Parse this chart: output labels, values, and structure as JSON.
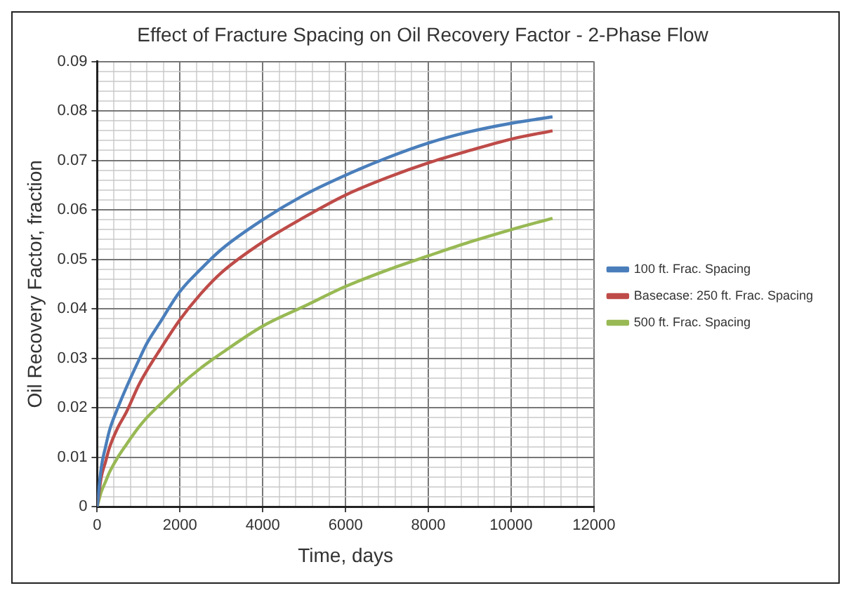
{
  "chart_data": {
    "type": "line",
    "title": "Effect of Fracture Spacing on Oil Recovery Factor - 2-Phase Flow",
    "xlabel": "Time, days",
    "ylabel": "Oil Recovery Factor, fraction",
    "x": [
      0,
      100,
      200,
      300,
      500,
      700,
      1000,
      1200,
      1500,
      2000,
      2500,
      3000,
      4000,
      5000,
      6000,
      7000,
      8000,
      9000,
      10000,
      11000
    ],
    "series": [
      {
        "name": "100 ft. Frac. Spacing",
        "color": "#4a7ebb",
        "values": [
          0,
          0.008,
          0.012,
          0.0155,
          0.02,
          0.024,
          0.0295,
          0.033,
          0.037,
          0.0435,
          0.048,
          0.052,
          0.058,
          0.063,
          0.067,
          0.0705,
          0.0735,
          0.0758,
          0.0775,
          0.0788
        ]
      },
      {
        "name": "Basecase: 250 ft. Frac. Spacing",
        "color": "#be4b48",
        "values": [
          0,
          0.006,
          0.009,
          0.012,
          0.016,
          0.019,
          0.0245,
          0.0275,
          0.0315,
          0.0378,
          0.043,
          0.0473,
          0.0535,
          0.0585,
          0.063,
          0.0665,
          0.0695,
          0.072,
          0.0743,
          0.076
        ]
      },
      {
        "name": "500 ft. Frac. Spacing",
        "color": "#98b954",
        "values": [
          0,
          0.003,
          0.005,
          0.007,
          0.01,
          0.0125,
          0.016,
          0.018,
          0.0205,
          0.0245,
          0.028,
          0.031,
          0.0365,
          0.0405,
          0.0445,
          0.0478,
          0.0507,
          0.0535,
          0.056,
          0.0583
        ]
      }
    ],
    "xlim": [
      0,
      12000
    ],
    "xticks": [
      0,
      {
        "value": 400,
        "label": null
      },
      {
        "value": 800,
        "label": null
      },
      {
        "value": 1200,
        "label": null
      },
      {
        "value": 1600,
        "label": null
      },
      2000,
      {
        "value": 2400,
        "label": null
      },
      {
        "value": 2800,
        "label": null
      },
      {
        "value": 3200,
        "label": null
      },
      {
        "value": 3600,
        "label": null
      },
      4000,
      {
        "value": 4400,
        "label": null
      },
      {
        "value": 4800,
        "label": null
      },
      {
        "value": 5200,
        "label": null
      },
      {
        "value": 5600,
        "label": null
      },
      6000,
      {
        "value": 6400,
        "label": null
      },
      {
        "value": 6800,
        "label": null
      },
      {
        "value": 7200,
        "label": null
      },
      {
        "value": 7600,
        "label": null
      },
      8000,
      {
        "value": 8400,
        "label": null
      },
      {
        "value": 8800,
        "label": null
      },
      {
        "value": 9200,
        "label": null
      },
      {
        "value": 9600,
        "label": null
      },
      10000,
      {
        "value": 10400,
        "label": null
      },
      {
        "value": 10800,
        "label": null
      },
      {
        "value": 11200,
        "label": null
      },
      {
        "value": 11600,
        "label": null
      },
      12000
    ],
    "ylim": [
      0,
      0.09
    ],
    "yticks": [
      0,
      {
        "value": 0.002,
        "label": null
      },
      {
        "value": 0.004,
        "label": null
      },
      {
        "value": 0.006,
        "label": null
      },
      {
        "value": 0.008,
        "label": null
      },
      0.01,
      {
        "value": 0.012,
        "label": null
      },
      {
        "value": 0.014,
        "label": null
      },
      {
        "value": 0.016,
        "label": null
      },
      {
        "value": 0.018,
        "label": null
      },
      0.02,
      {
        "value": 0.022,
        "label": null
      },
      {
        "value": 0.024,
        "label": null
      },
      {
        "value": 0.026,
        "label": null
      },
      {
        "value": 0.028,
        "label": null
      },
      0.03,
      {
        "value": 0.032,
        "label": null
      },
      {
        "value": 0.034,
        "label": null
      },
      {
        "value": 0.036,
        "label": null
      },
      {
        "value": 0.038,
        "label": null
      },
      0.04,
      {
        "value": 0.042,
        "label": null
      },
      {
        "value": 0.044,
        "label": null
      },
      {
        "value": 0.046,
        "label": null
      },
      {
        "value": 0.048,
        "label": null
      },
      0.05,
      {
        "value": 0.052,
        "label": null
      },
      {
        "value": 0.054,
        "label": null
      },
      {
        "value": 0.056,
        "label": null
      },
      {
        "value": 0.058,
        "label": null
      },
      0.06,
      {
        "value": 0.062,
        "label": null
      },
      {
        "value": 0.064,
        "label": null
      },
      {
        "value": 0.066,
        "label": null
      },
      {
        "value": 0.068,
        "label": null
      },
      0.07,
      {
        "value": 0.072,
        "label": null
      },
      {
        "value": 0.074,
        "label": null
      },
      {
        "value": 0.076,
        "label": null
      },
      {
        "value": 0.078,
        "label": null
      },
      0.08,
      {
        "value": 0.082,
        "label": null
      },
      {
        "value": 0.084,
        "label": null
      },
      {
        "value": 0.086,
        "label": null
      },
      {
        "value": 0.088,
        "label": null
      },
      0.09
    ],
    "grid": true,
    "legend": "right",
    "marker": "none",
    "line_style": "solid"
  }
}
